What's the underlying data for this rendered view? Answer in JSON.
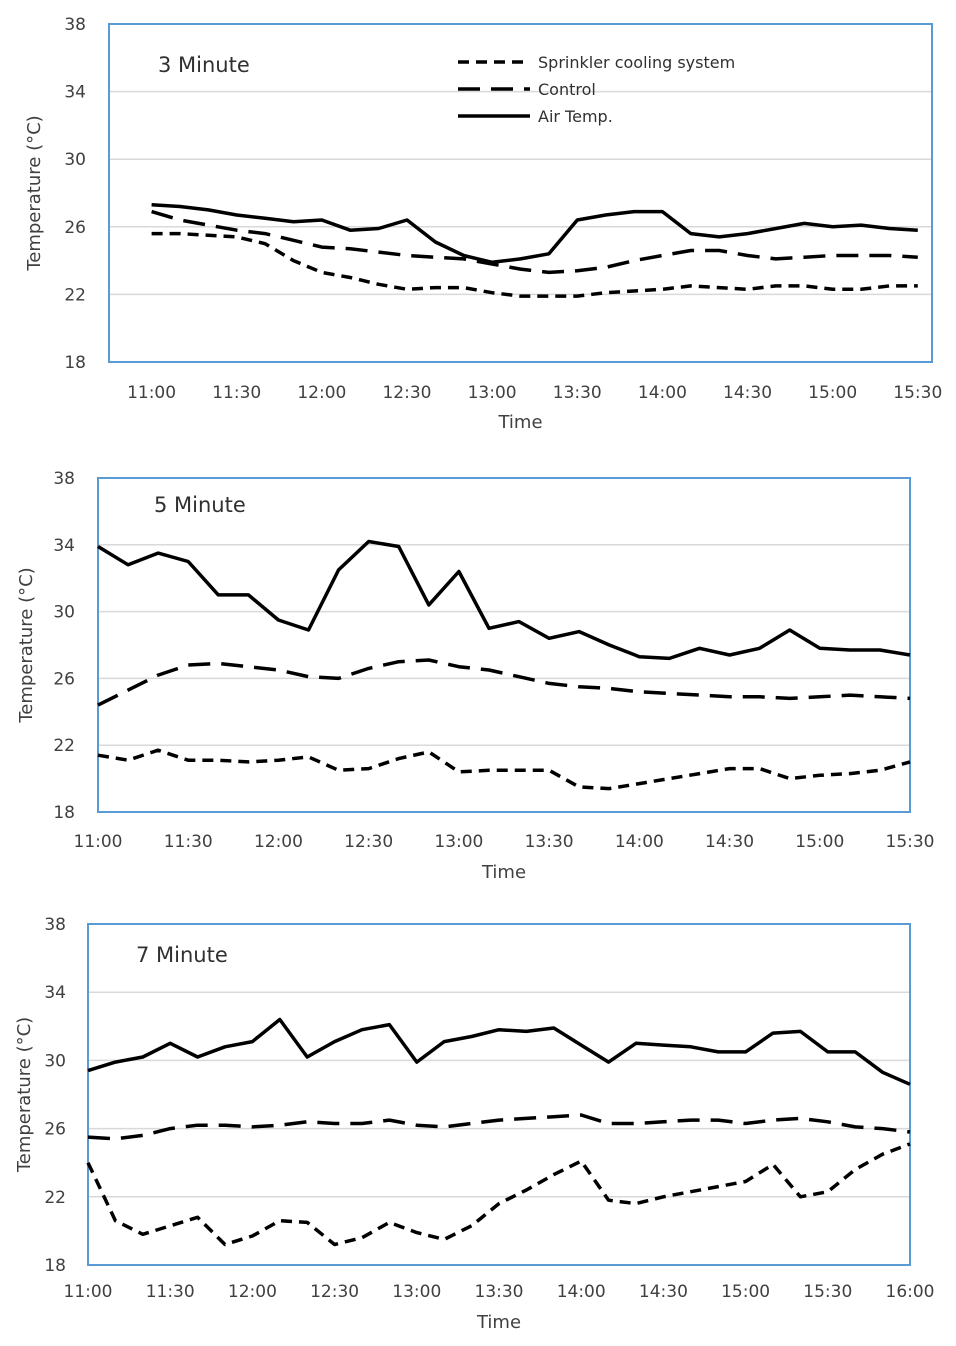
{
  "colors": {
    "frame": "#5b9bd5",
    "grid": "#d9d9d9",
    "line": "#000000",
    "text": "#404040"
  },
  "legend": [
    {
      "name": "Sprinkler cooling system",
      "style": "short-dash"
    },
    {
      "name": "Control",
      "style": "long-dash"
    },
    {
      "name": "Air Temp.",
      "style": "solid"
    }
  ],
  "chart_data": [
    {
      "type": "line",
      "title": "3 Minute",
      "xlabel": "Time",
      "ylabel": "Temperature (°C)",
      "ylim": [
        18,
        38
      ],
      "yticks": [
        "18",
        "22",
        "26",
        "30",
        "34",
        "38"
      ],
      "xticks": [
        "11:00",
        "11:30",
        "12:00",
        "12:30",
        "13:00",
        "13:30",
        "14:00",
        "14:30",
        "15:00",
        "15:30"
      ],
      "xlim_minutes": [
        -15,
        275
      ],
      "grid": true,
      "legend_position": "top-right",
      "x_minutes": [
        0,
        10,
        20,
        30,
        40,
        50,
        60,
        70,
        80,
        90,
        100,
        110,
        120,
        130,
        140,
        150,
        160,
        170,
        180,
        190,
        200,
        210,
        220,
        230,
        240,
        250,
        260,
        270
      ],
      "series": [
        {
          "name": "Sprinkler cooling system",
          "style": "short-dash",
          "values": [
            25.6,
            25.6,
            25.5,
            25.4,
            25.0,
            24.0,
            23.3,
            23.0,
            22.6,
            22.3,
            22.4,
            22.4,
            22.1,
            21.9,
            21.9,
            21.9,
            22.1,
            22.2,
            22.3,
            22.5,
            22.4,
            22.3,
            22.5,
            22.5,
            22.3,
            22.3,
            22.5,
            22.5
          ]
        },
        {
          "name": "Control",
          "style": "long-dash",
          "values": [
            26.9,
            26.4,
            26.1,
            25.8,
            25.6,
            25.2,
            24.8,
            24.7,
            24.5,
            24.3,
            24.2,
            24.1,
            23.8,
            23.5,
            23.3,
            23.4,
            23.6,
            24.0,
            24.3,
            24.6,
            24.6,
            24.3,
            24.1,
            24.2,
            24.3,
            24.3,
            24.3,
            24.2
          ]
        },
        {
          "name": "Air Temp.",
          "style": "solid",
          "values": [
            27.3,
            27.2,
            27.0,
            26.7,
            26.5,
            26.3,
            26.4,
            25.8,
            25.9,
            26.4,
            25.1,
            24.3,
            23.9,
            24.1,
            24.4,
            26.4,
            26.7,
            26.9,
            26.9,
            25.6,
            25.4,
            25.6,
            25.9,
            26.2,
            26.0,
            26.1,
            25.9,
            25.8
          ]
        }
      ]
    },
    {
      "type": "line",
      "title": "5 Minute",
      "xlabel": "Time",
      "ylabel": "Temperature (°C)",
      "ylim": [
        18,
        38
      ],
      "yticks": [
        "18",
        "22",
        "26",
        "30",
        "34",
        "38"
      ],
      "xticks": [
        "11:00",
        "11:30",
        "12:00",
        "12:30",
        "13:00",
        "13:30",
        "14:00",
        "14:30",
        "15:00",
        "15:30"
      ],
      "xlim_minutes": [
        0,
        270
      ],
      "grid": true,
      "x_minutes": [
        0,
        10,
        20,
        30,
        40,
        50,
        60,
        70,
        80,
        90,
        100,
        110,
        120,
        130,
        140,
        150,
        160,
        170,
        180,
        190,
        200,
        210,
        220,
        230,
        240,
        250,
        260,
        270
      ],
      "series": [
        {
          "name": "Sprinkler cooling system",
          "style": "short-dash",
          "values": [
            21.4,
            21.1,
            21.7,
            21.1,
            21.1,
            21.0,
            21.1,
            21.3,
            20.5,
            20.6,
            21.2,
            21.6,
            20.4,
            20.5,
            20.5,
            20.5,
            19.5,
            19.4,
            19.7,
            20.0,
            20.3,
            20.6,
            20.6,
            20.0,
            20.2,
            20.3,
            20.5,
            21.0
          ]
        },
        {
          "name": "Control",
          "style": "long-dash",
          "values": [
            24.4,
            25.3,
            26.2,
            26.8,
            26.9,
            26.7,
            26.5,
            26.1,
            26.0,
            26.6,
            27.0,
            27.1,
            26.7,
            26.5,
            26.1,
            25.7,
            25.5,
            25.4,
            25.2,
            25.1,
            25.0,
            24.9,
            24.9,
            24.8,
            24.9,
            25.0,
            24.9,
            24.8
          ]
        },
        {
          "name": "Air Temp.",
          "style": "solid",
          "values": [
            33.9,
            32.8,
            33.5,
            33.0,
            31.0,
            31.0,
            29.5,
            28.9,
            32.5,
            34.2,
            33.9,
            30.4,
            32.4,
            29.0,
            29.4,
            28.4,
            28.8,
            28.0,
            27.3,
            27.2,
            27.8,
            27.4,
            27.8,
            28.9,
            27.8,
            27.7,
            27.7,
            27.4
          ]
        }
      ]
    },
    {
      "type": "line",
      "title": "7 Minute",
      "xlabel": "Time",
      "ylabel": "Temperature (°C)",
      "ylim": [
        18,
        38
      ],
      "yticks": [
        "18",
        "22",
        "26",
        "30",
        "34",
        "38"
      ],
      "xticks": [
        "11:00",
        "11:30",
        "12:00",
        "12:30",
        "13:00",
        "13:30",
        "14:00",
        "14:30",
        "15:00",
        "15:30",
        "16:00"
      ],
      "xlim_minutes": [
        0,
        300
      ],
      "grid": true,
      "x_minutes": [
        0,
        10,
        20,
        30,
        40,
        50,
        60,
        70,
        80,
        90,
        100,
        110,
        120,
        130,
        140,
        150,
        160,
        170,
        180,
        190,
        200,
        210,
        220,
        230,
        240,
        250,
        260,
        270,
        280,
        290,
        300
      ],
      "series": [
        {
          "name": "Sprinkler cooling system",
          "style": "short-dash",
          "values": [
            24.0,
            20.6,
            19.8,
            20.3,
            20.8,
            19.2,
            19.7,
            20.6,
            20.5,
            19.2,
            19.6,
            20.5,
            19.9,
            19.5,
            20.3,
            21.6,
            22.4,
            23.3,
            24.1,
            21.8,
            21.6,
            22.0,
            22.3,
            22.6,
            22.9,
            23.9,
            22.0,
            22.3,
            23.6,
            24.5,
            25.1
          ]
        },
        {
          "name": "Control",
          "style": "long-dash",
          "values": [
            25.5,
            25.4,
            25.6,
            26.0,
            26.2,
            26.2,
            26.1,
            26.2,
            26.4,
            26.3,
            26.3,
            26.5,
            26.2,
            26.1,
            26.3,
            26.5,
            26.6,
            26.7,
            26.8,
            26.3,
            26.3,
            26.4,
            26.5,
            26.5,
            26.3,
            26.5,
            26.6,
            26.4,
            26.1,
            26.0,
            25.8
          ]
        },
        {
          "name": "Air Temp.",
          "style": "solid",
          "values": [
            29.4,
            29.9,
            30.2,
            31.0,
            30.2,
            30.8,
            31.1,
            32.4,
            30.2,
            31.1,
            31.8,
            32.1,
            29.9,
            31.1,
            31.4,
            31.8,
            31.7,
            31.9,
            30.9,
            29.9,
            31.0,
            30.9,
            30.8,
            30.5,
            30.5,
            31.6,
            31.7,
            30.5,
            30.5,
            29.3,
            28.6
          ]
        }
      ]
    }
  ]
}
